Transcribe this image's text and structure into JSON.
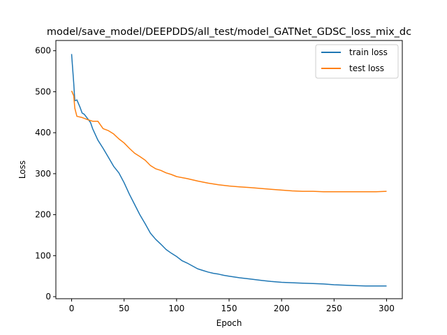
{
  "chart_data": {
    "type": "line",
    "title": "model/save_model/DEEPDDS/all_test/model_GATNet_GDSC_loss_mix_dc",
    "xlabel": "Epoch",
    "ylabel": "Loss",
    "xlim": [
      -15,
      315
    ],
    "ylim": [
      -5,
      625
    ],
    "xticks": [
      0,
      50,
      100,
      150,
      200,
      250,
      300
    ],
    "yticks": [
      0,
      100,
      200,
      300,
      400,
      500,
      600
    ],
    "grid": false,
    "legend_position": "top-right",
    "series": [
      {
        "name": "train loss",
        "color": "#1f77b4",
        "x": [
          0,
          2,
          3,
          5,
          8,
          10,
          12,
          15,
          18,
          20,
          25,
          30,
          35,
          40,
          45,
          50,
          55,
          60,
          65,
          70,
          75,
          80,
          85,
          90,
          95,
          100,
          105,
          110,
          115,
          120,
          125,
          130,
          135,
          140,
          145,
          150,
          160,
          170,
          180,
          190,
          200,
          210,
          220,
          230,
          240,
          250,
          260,
          270,
          280,
          290,
          300
        ],
        "values": [
          592,
          520,
          478,
          480,
          462,
          448,
          445,
          435,
          425,
          410,
          382,
          362,
          340,
          318,
          302,
          278,
          250,
          225,
          200,
          178,
          155,
          140,
          128,
          115,
          106,
          98,
          88,
          82,
          75,
          68,
          64,
          60,
          57,
          55,
          52,
          50,
          46,
          43,
          40,
          37,
          35,
          34,
          33,
          32,
          31,
          29,
          28,
          27,
          26,
          26,
          26
        ]
      },
      {
        "name": "test loss",
        "color": "#ff7f0e",
        "x": [
          0,
          2,
          3,
          5,
          10,
          15,
          20,
          25,
          30,
          35,
          40,
          45,
          50,
          55,
          60,
          65,
          70,
          75,
          80,
          85,
          90,
          95,
          100,
          110,
          120,
          130,
          140,
          150,
          160,
          170,
          180,
          190,
          200,
          210,
          220,
          230,
          240,
          250,
          260,
          270,
          280,
          290,
          300
        ],
        "values": [
          502,
          490,
          460,
          440,
          437,
          432,
          428,
          428,
          410,
          405,
          397,
          385,
          375,
          362,
          350,
          342,
          333,
          320,
          312,
          308,
          302,
          298,
          293,
          288,
          282,
          277,
          273,
          270,
          268,
          266,
          264,
          262,
          260,
          258,
          257,
          257,
          256,
          256,
          256,
          256,
          256,
          256,
          257
        ]
      }
    ]
  }
}
